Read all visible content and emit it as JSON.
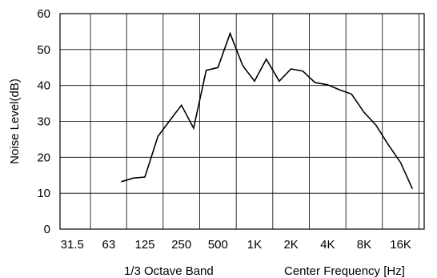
{
  "chart_data": {
    "type": "line",
    "title": "",
    "ylabel": "Noise Level(dB)",
    "xlabel_left": "1/3 Octave Band",
    "xlabel_right": "Center Frequency [Hz]",
    "ylim": [
      0,
      60
    ],
    "yticks": [
      "0",
      "10",
      "20",
      "30",
      "40",
      "50",
      "60"
    ],
    "xlim": [
      25,
      25000
    ],
    "x_scale": "log",
    "grid": true,
    "xticks": [
      {
        "label": "31.5",
        "value": 31.5
      },
      {
        "label": "63",
        "value": 63
      },
      {
        "label": "125",
        "value": 125
      },
      {
        "label": "250",
        "value": 250
      },
      {
        "label": "500",
        "value": 500
      },
      {
        "label": "1K",
        "value": 1000
      },
      {
        "label": "2K",
        "value": 2000
      },
      {
        "label": "4K",
        "value": 4000
      },
      {
        "label": "8K",
        "value": 8000
      },
      {
        "label": "16K",
        "value": 16000
      }
    ],
    "series": [
      {
        "x": [
          80,
          100,
          125,
          160,
          200,
          250,
          315,
          400,
          500,
          630,
          800,
          1000,
          1250,
          1600,
          2000,
          2500,
          3150,
          4000,
          5000,
          6300,
          8000,
          10000,
          12500,
          16000,
          20000
        ],
        "y": [
          13.2,
          14.2,
          14.5,
          25.8,
          30.2,
          34.5,
          28.1,
          44.2,
          45.0,
          54.5,
          45.5,
          41.2,
          47.3,
          41.2,
          44.6,
          44.0,
          40.8,
          40.2,
          38.8,
          37.6,
          32.5,
          29.0,
          23.8,
          18.5,
          11.2
        ]
      }
    ]
  }
}
